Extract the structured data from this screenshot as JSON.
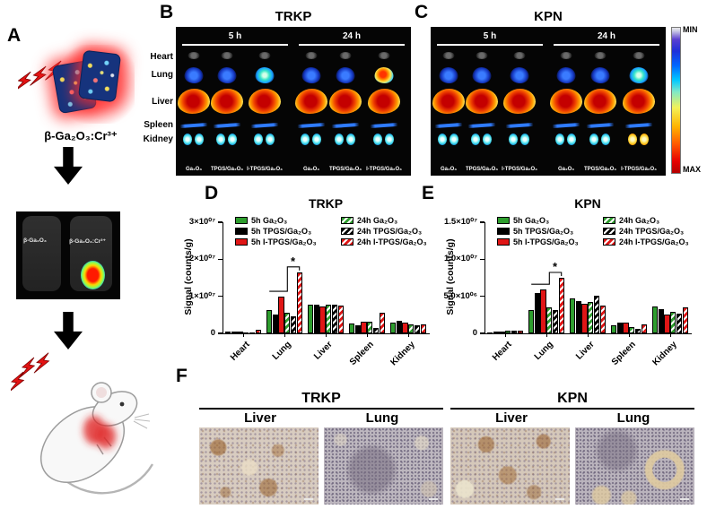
{
  "figure": {
    "background": "#ffffff",
    "colors": {
      "green": "#2e9e2e",
      "black": "#000000",
      "red": "#e01616"
    }
  },
  "panel_a": {
    "label": "A",
    "material_label": "β-Ga₂O₃:Cr³⁺",
    "vial_image": {
      "left_label": "β-Ga₂O₃",
      "right_label": "β-Ga₂O₃:Cr³⁺"
    }
  },
  "panel_b": {
    "label": "B",
    "title": "TRKP",
    "timepoints": [
      "5 h",
      "24 h"
    ],
    "organ_labels": [
      "Heart",
      "Lung",
      "Liver",
      "Spleen",
      "Kidney"
    ],
    "column_labels": [
      "Ga₂O₃",
      "TPGS/Ga₂O₃",
      "I-TPGS/Ga₂O₃",
      "Ga₂O₃",
      "TPGS/Ga₂O₃",
      "I-TPGS/Ga₂O₃"
    ]
  },
  "panel_c": {
    "label": "C",
    "title": "KPN",
    "timepoints": [
      "5 h",
      "24 h"
    ],
    "column_labels": [
      "Ga₂O₃",
      "TPGS/Ga₂O₃",
      "I-TPGS/Ga₂O₃",
      "Ga₂O₃",
      "TPGS/Ga₂O₃",
      "I-TPGS/Ga₂O₃"
    ]
  },
  "colorbar": {
    "top_label": "MIN",
    "bottom_label": "MAX"
  },
  "panel_d": {
    "label": "D"
  },
  "panel_e": {
    "label": "E"
  },
  "panel_f": {
    "label": "F",
    "groups": [
      {
        "title": "TRKP",
        "image_labels": [
          "Liver",
          "Lung"
        ]
      },
      {
        "title": "KPN",
        "image_labels": [
          "Liver",
          "Lung"
        ]
      }
    ]
  },
  "chart_data": [
    {
      "panel": "D",
      "type": "bar",
      "title": "TRKP",
      "ylabel": "Signal (counts/g)",
      "categories": [
        "Heart",
        "Lung",
        "Liver",
        "Spleen",
        "Kidney"
      ],
      "ylim": [
        0,
        30000000
      ],
      "yticks": [
        {
          "v": 0,
          "label": "0"
        },
        {
          "v": 10000000,
          "label": "1×10⁰⁷"
        },
        {
          "v": 20000000,
          "label": "2×10⁰⁷"
        },
        {
          "v": 30000000,
          "label": "3×10⁰⁷"
        }
      ],
      "series": [
        {
          "name": "5h Ga₂O₃",
          "color": "#2e9e2e",
          "hatched": false,
          "values": [
            400000,
            6200000,
            7800000,
            2700000,
            3000000
          ]
        },
        {
          "name": "5h TPGS/Ga₂O₃",
          "color": "#000000",
          "hatched": false,
          "values": [
            500000,
            5200000,
            7800000,
            2200000,
            3500000
          ]
        },
        {
          "name": "5h I-TPGS/Ga₂O₃",
          "color": "#e01616",
          "hatched": false,
          "values": [
            400000,
            9900000,
            7200000,
            3200000,
            3000000
          ]
        },
        {
          "name": "24h Ga₂O₃",
          "color": "#2e9e2e",
          "hatched": true,
          "values": [
            300000,
            5500000,
            7800000,
            3200000,
            2500000
          ]
        },
        {
          "name": "24h TPGS/Ga₂O₃",
          "color": "#000000",
          "hatched": true,
          "values": [
            300000,
            4600000,
            7800000,
            1500000,
            2200000
          ]
        },
        {
          "name": "24h I-TPGS/Ga₂O₃",
          "color": "#e01616",
          "hatched": true,
          "values": [
            900000,
            16500000,
            7500000,
            5600000,
            2500000
          ]
        }
      ],
      "significance": {
        "category": "Lung",
        "label": "*"
      }
    },
    {
      "panel": "E",
      "type": "bar",
      "title": "KPN",
      "ylabel": "Signal (counts/g)",
      "categories": [
        "Heart",
        "Lung",
        "Liver",
        "Spleen",
        "Kidney"
      ],
      "ylim": [
        0,
        15000000
      ],
      "yticks": [
        {
          "v": 0,
          "label": "0"
        },
        {
          "v": 5000000,
          "label": "5.0×10⁰⁶"
        },
        {
          "v": 10000000,
          "label": "1.0×10⁰⁷"
        },
        {
          "v": 15000000,
          "label": "1.5×10⁰⁷"
        }
      ],
      "series": [
        {
          "name": "5h Ga₂O₃",
          "color": "#2e9e2e",
          "hatched": false,
          "values": [
            150000,
            3200000,
            4700000,
            1100000,
            3600000
          ]
        },
        {
          "name": "5h TPGS/Ga₂O₃",
          "color": "#000000",
          "hatched": false,
          "values": [
            200000,
            5500000,
            4300000,
            1500000,
            3300000
          ]
        },
        {
          "name": "5h I-TPGS/Ga₂O₃",
          "color": "#e01616",
          "hatched": false,
          "values": [
            200000,
            5900000,
            4000000,
            1400000,
            2500000
          ]
        },
        {
          "name": "24h Ga₂O₃",
          "color": "#2e9e2e",
          "hatched": true,
          "values": [
            350000,
            3500000,
            4200000,
            900000,
            2900000
          ]
        },
        {
          "name": "24h TPGS/Ga₂O₃",
          "color": "#000000",
          "hatched": true,
          "values": [
            350000,
            3200000,
            5100000,
            600000,
            2700000
          ]
        },
        {
          "name": "24h I-TPGS/Ga₂O₃",
          "color": "#e01616",
          "hatched": true,
          "values": [
            350000,
            7500000,
            3700000,
            1200000,
            3500000
          ]
        }
      ],
      "significance": {
        "category": "Lung",
        "label": "*"
      }
    }
  ]
}
